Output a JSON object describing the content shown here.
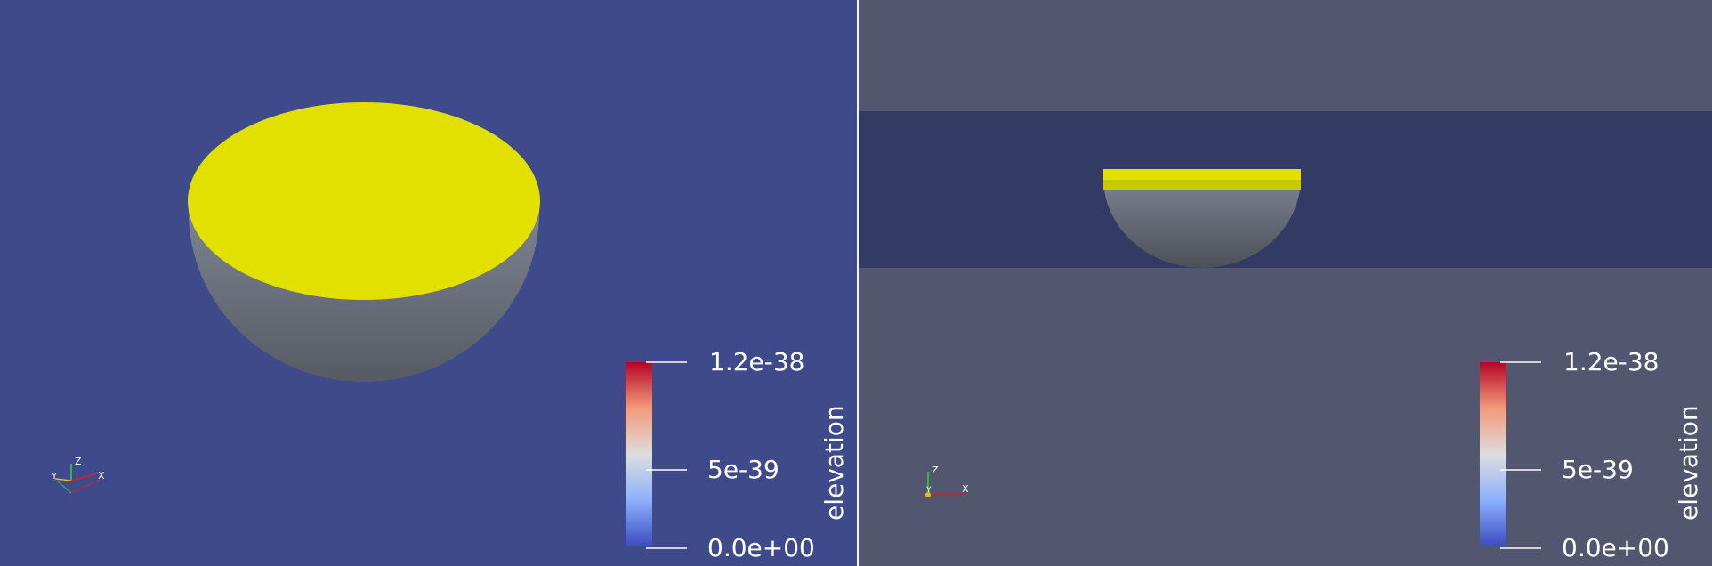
{
  "layout": {
    "views": [
      "left-3d-view",
      "right-side-view"
    ]
  },
  "colorbar": {
    "ticks": {
      "max": "1.2e-38",
      "mid": "5e-39",
      "min": "0.0e+00"
    },
    "title": "elevation",
    "gradient": [
      "#3b4cc0",
      "#8db0fe",
      "#dddddd",
      "#f49a7b",
      "#b40426"
    ]
  },
  "axes": {
    "x": "X",
    "y": "Y",
    "z": "Z"
  },
  "colors": {
    "left_background": "#3f4a8a",
    "right_background": "#52576f",
    "right_band": "#333a63",
    "surface_yellow": "#e1e000",
    "surface_shadow": "#6f7040",
    "bowl": "#6b7077"
  }
}
